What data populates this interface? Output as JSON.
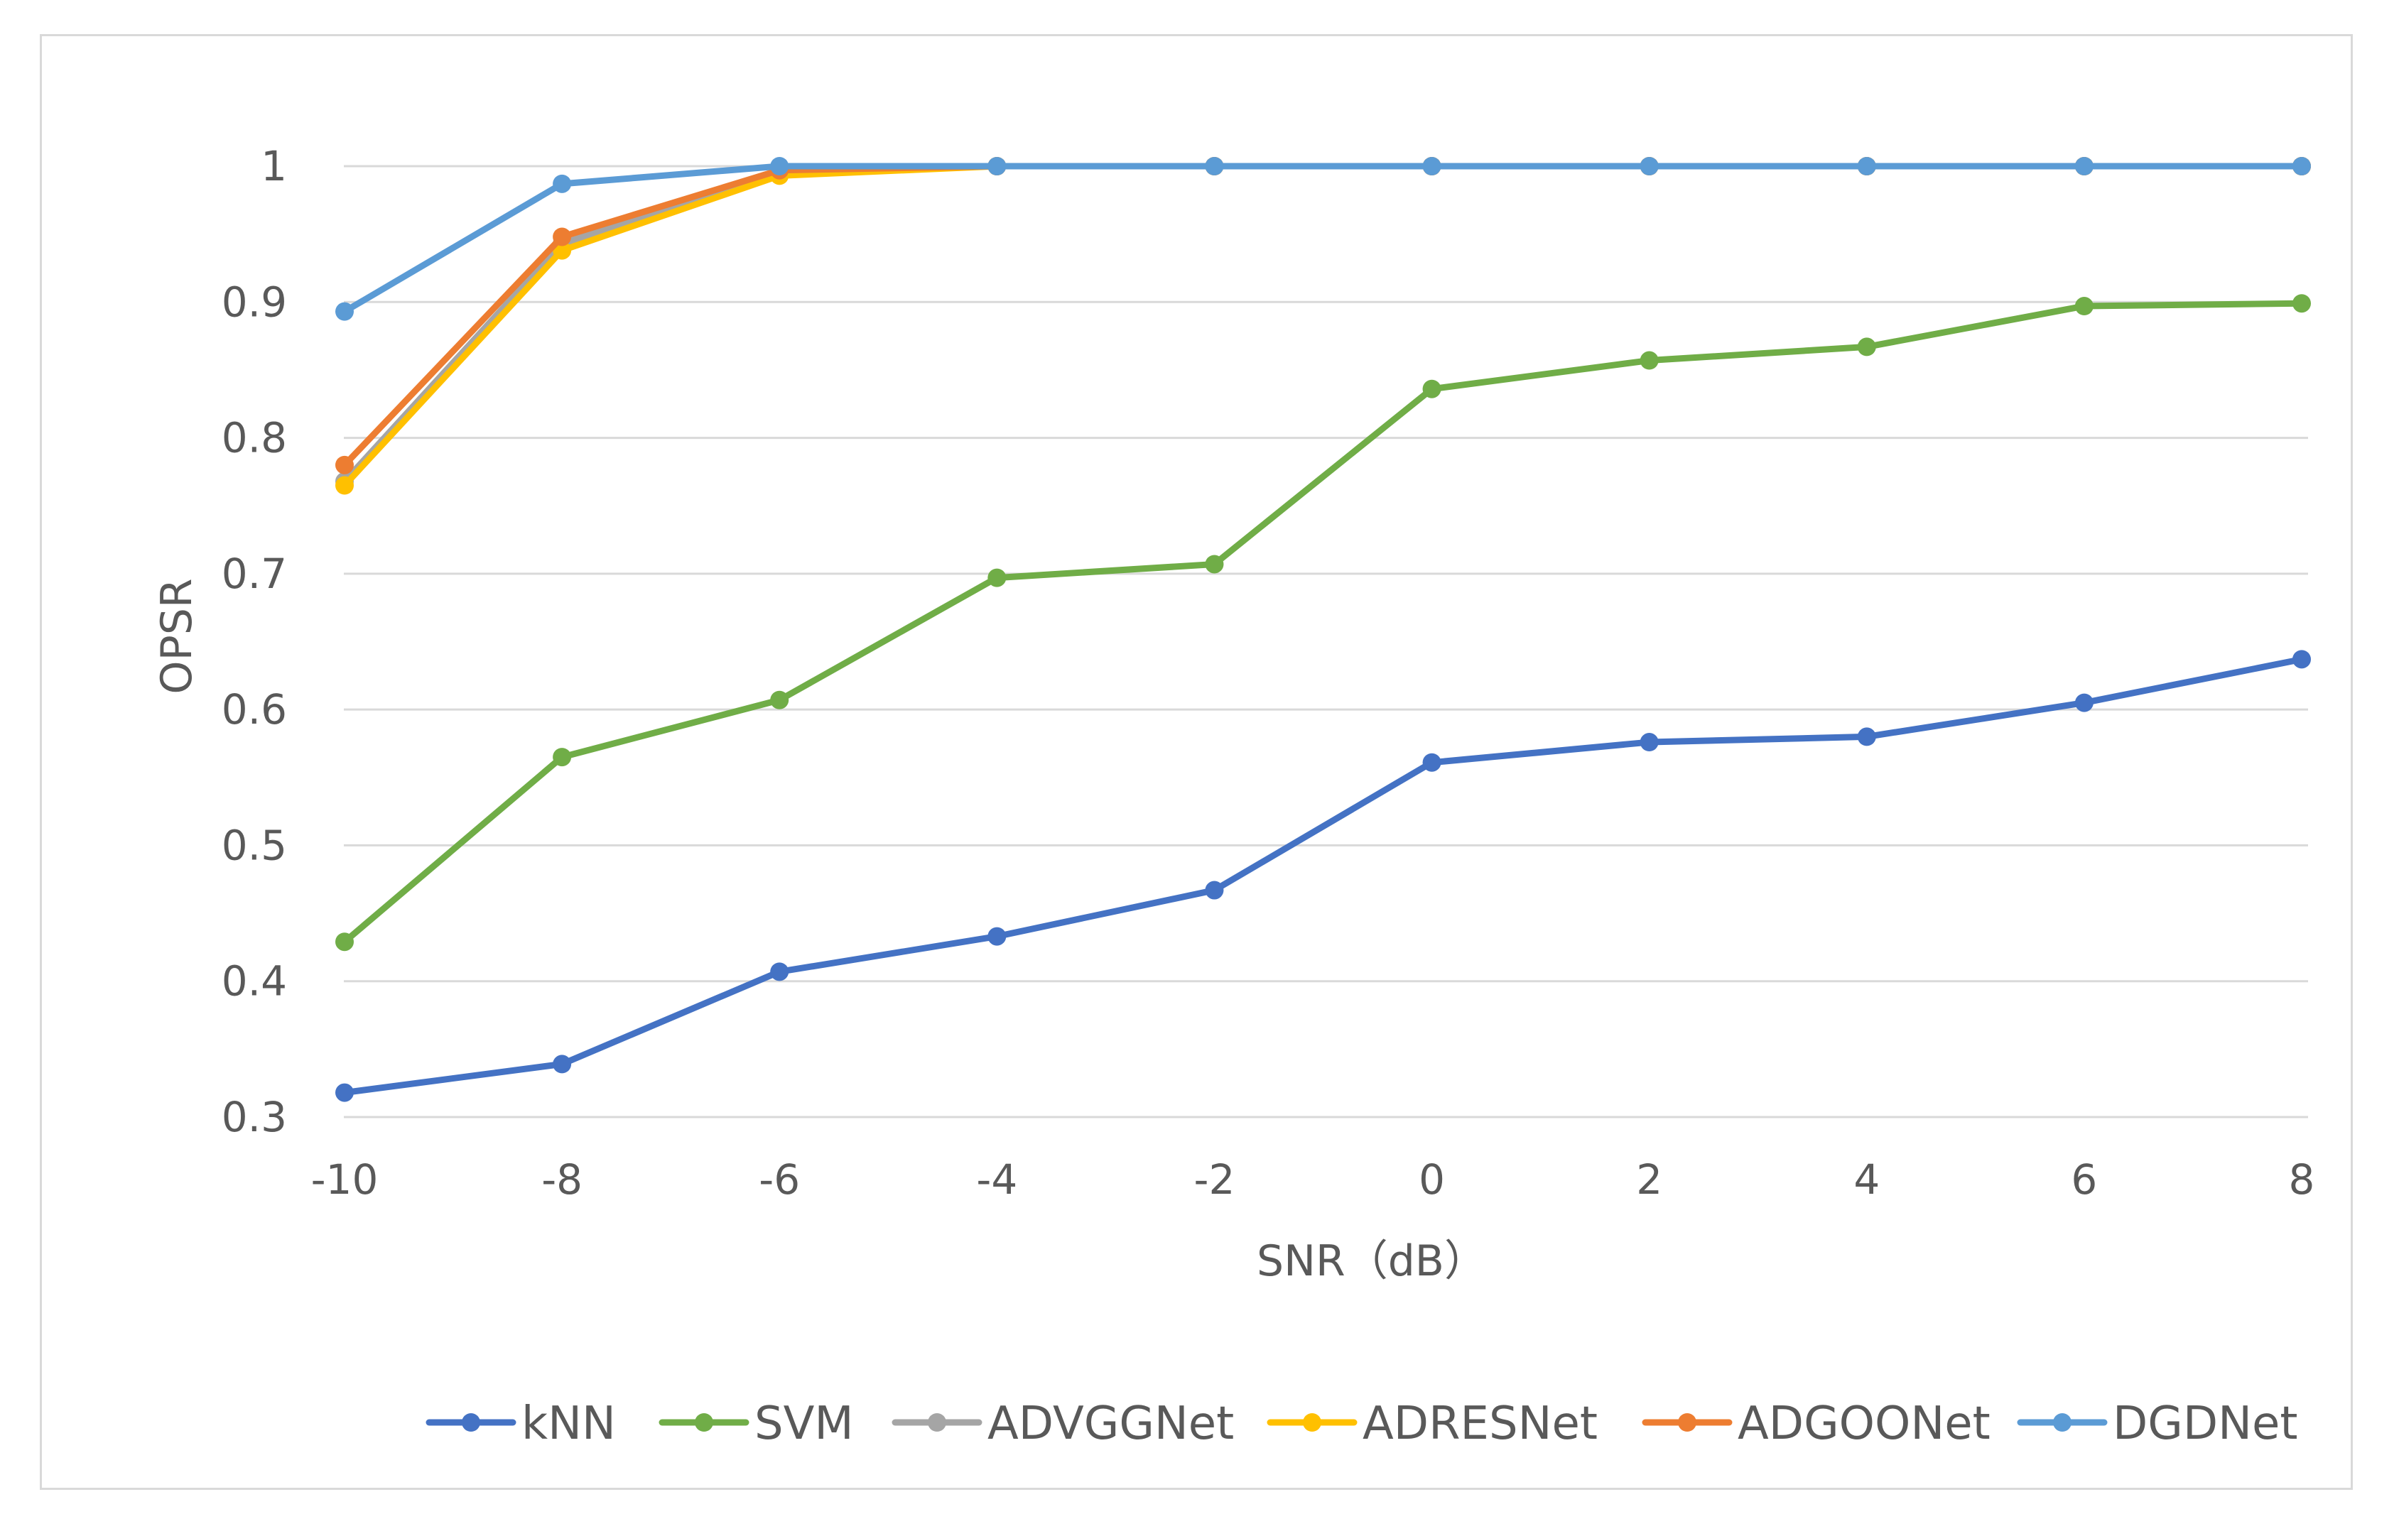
{
  "chart_data": {
    "type": "line",
    "title": "",
    "xlabel": "SNR（dB）",
    "ylabel": "OPSR",
    "categories": [
      "-10",
      "-8",
      "-6",
      "-4",
      "-2",
      "0",
      "2",
      "4",
      "6",
      "8"
    ],
    "ylim": [
      0.3,
      1.0
    ],
    "yticks": [
      "0.3",
      "0.4",
      "0.5",
      "0.6",
      "0.7",
      "0.8",
      "0.9",
      "1"
    ],
    "grid": true,
    "legend_position": "bottom",
    "series": [
      {
        "name": "kNN",
        "color": "#4472c4",
        "values": [
          0.318,
          0.339,
          0.407,
          0.433,
          0.467,
          0.561,
          0.576,
          0.58,
          0.605,
          0.637
        ]
      },
      {
        "name": "SVM",
        "color": "#70ad47",
        "values": [
          0.429,
          0.565,
          0.607,
          0.697,
          0.707,
          0.836,
          0.857,
          0.867,
          0.897,
          0.899
        ]
      },
      {
        "name": "ADVGGNet",
        "color": "#a5a5a5",
        "values": [
          0.768,
          0.943,
          0.995,
          1.0,
          1.0,
          1.0,
          1.0,
          1.0,
          1.0,
          1.0
        ]
      },
      {
        "name": "ADRESNet",
        "color": "#ffc000",
        "values": [
          0.765,
          0.938,
          0.993,
          1.0,
          1.0,
          1.0,
          1.0,
          1.0,
          1.0,
          1.0
        ]
      },
      {
        "name": "ADGOONet",
        "color": "#ed7d31",
        "values": [
          0.78,
          0.948,
          0.997,
          1.0,
          1.0,
          1.0,
          1.0,
          1.0,
          1.0,
          1.0
        ]
      },
      {
        "name": "DGDNet",
        "color": "#5b9bd5",
        "values": [
          0.893,
          0.987,
          1.0,
          1.0,
          1.0,
          1.0,
          1.0,
          1.0,
          1.0,
          1.0
        ]
      }
    ]
  }
}
